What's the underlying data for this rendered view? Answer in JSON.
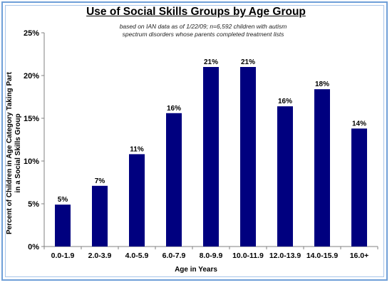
{
  "chart_data": {
    "type": "bar",
    "title": "Use of Social Skills Groups by Age Group",
    "subtitle": "based on IAN data as of 1/22/09; n=6,592 children with autism spectrum disorders whose parents completed treatment lists",
    "xlabel": "Age in Years",
    "ylabel": "Percent of Children in Age Category Taking Part in a Social Skills Group",
    "categories": [
      "0.0-1.9",
      "2.0-3.9",
      "4.0-5.9",
      "6.0-7.9",
      "8.0-9.9",
      "10.0-11.9",
      "12.0-13.9",
      "14.0-15.9",
      "16.0+"
    ],
    "values": [
      4.9,
      7.1,
      10.8,
      15.6,
      21.0,
      21.0,
      16.4,
      18.4,
      13.8
    ],
    "data_labels": [
      "5%",
      "7%",
      "11%",
      "16%",
      "21%",
      "21%",
      "16%",
      "18%",
      "14%"
    ],
    "ylim": [
      0,
      25
    ],
    "yticks": [
      0,
      5,
      10,
      15,
      20,
      25
    ],
    "ytick_labels": [
      "0%",
      "5%",
      "10%",
      "15%",
      "20%",
      "25%"
    ],
    "grid": false,
    "legend": "none",
    "bar_color": "#00007f"
  }
}
